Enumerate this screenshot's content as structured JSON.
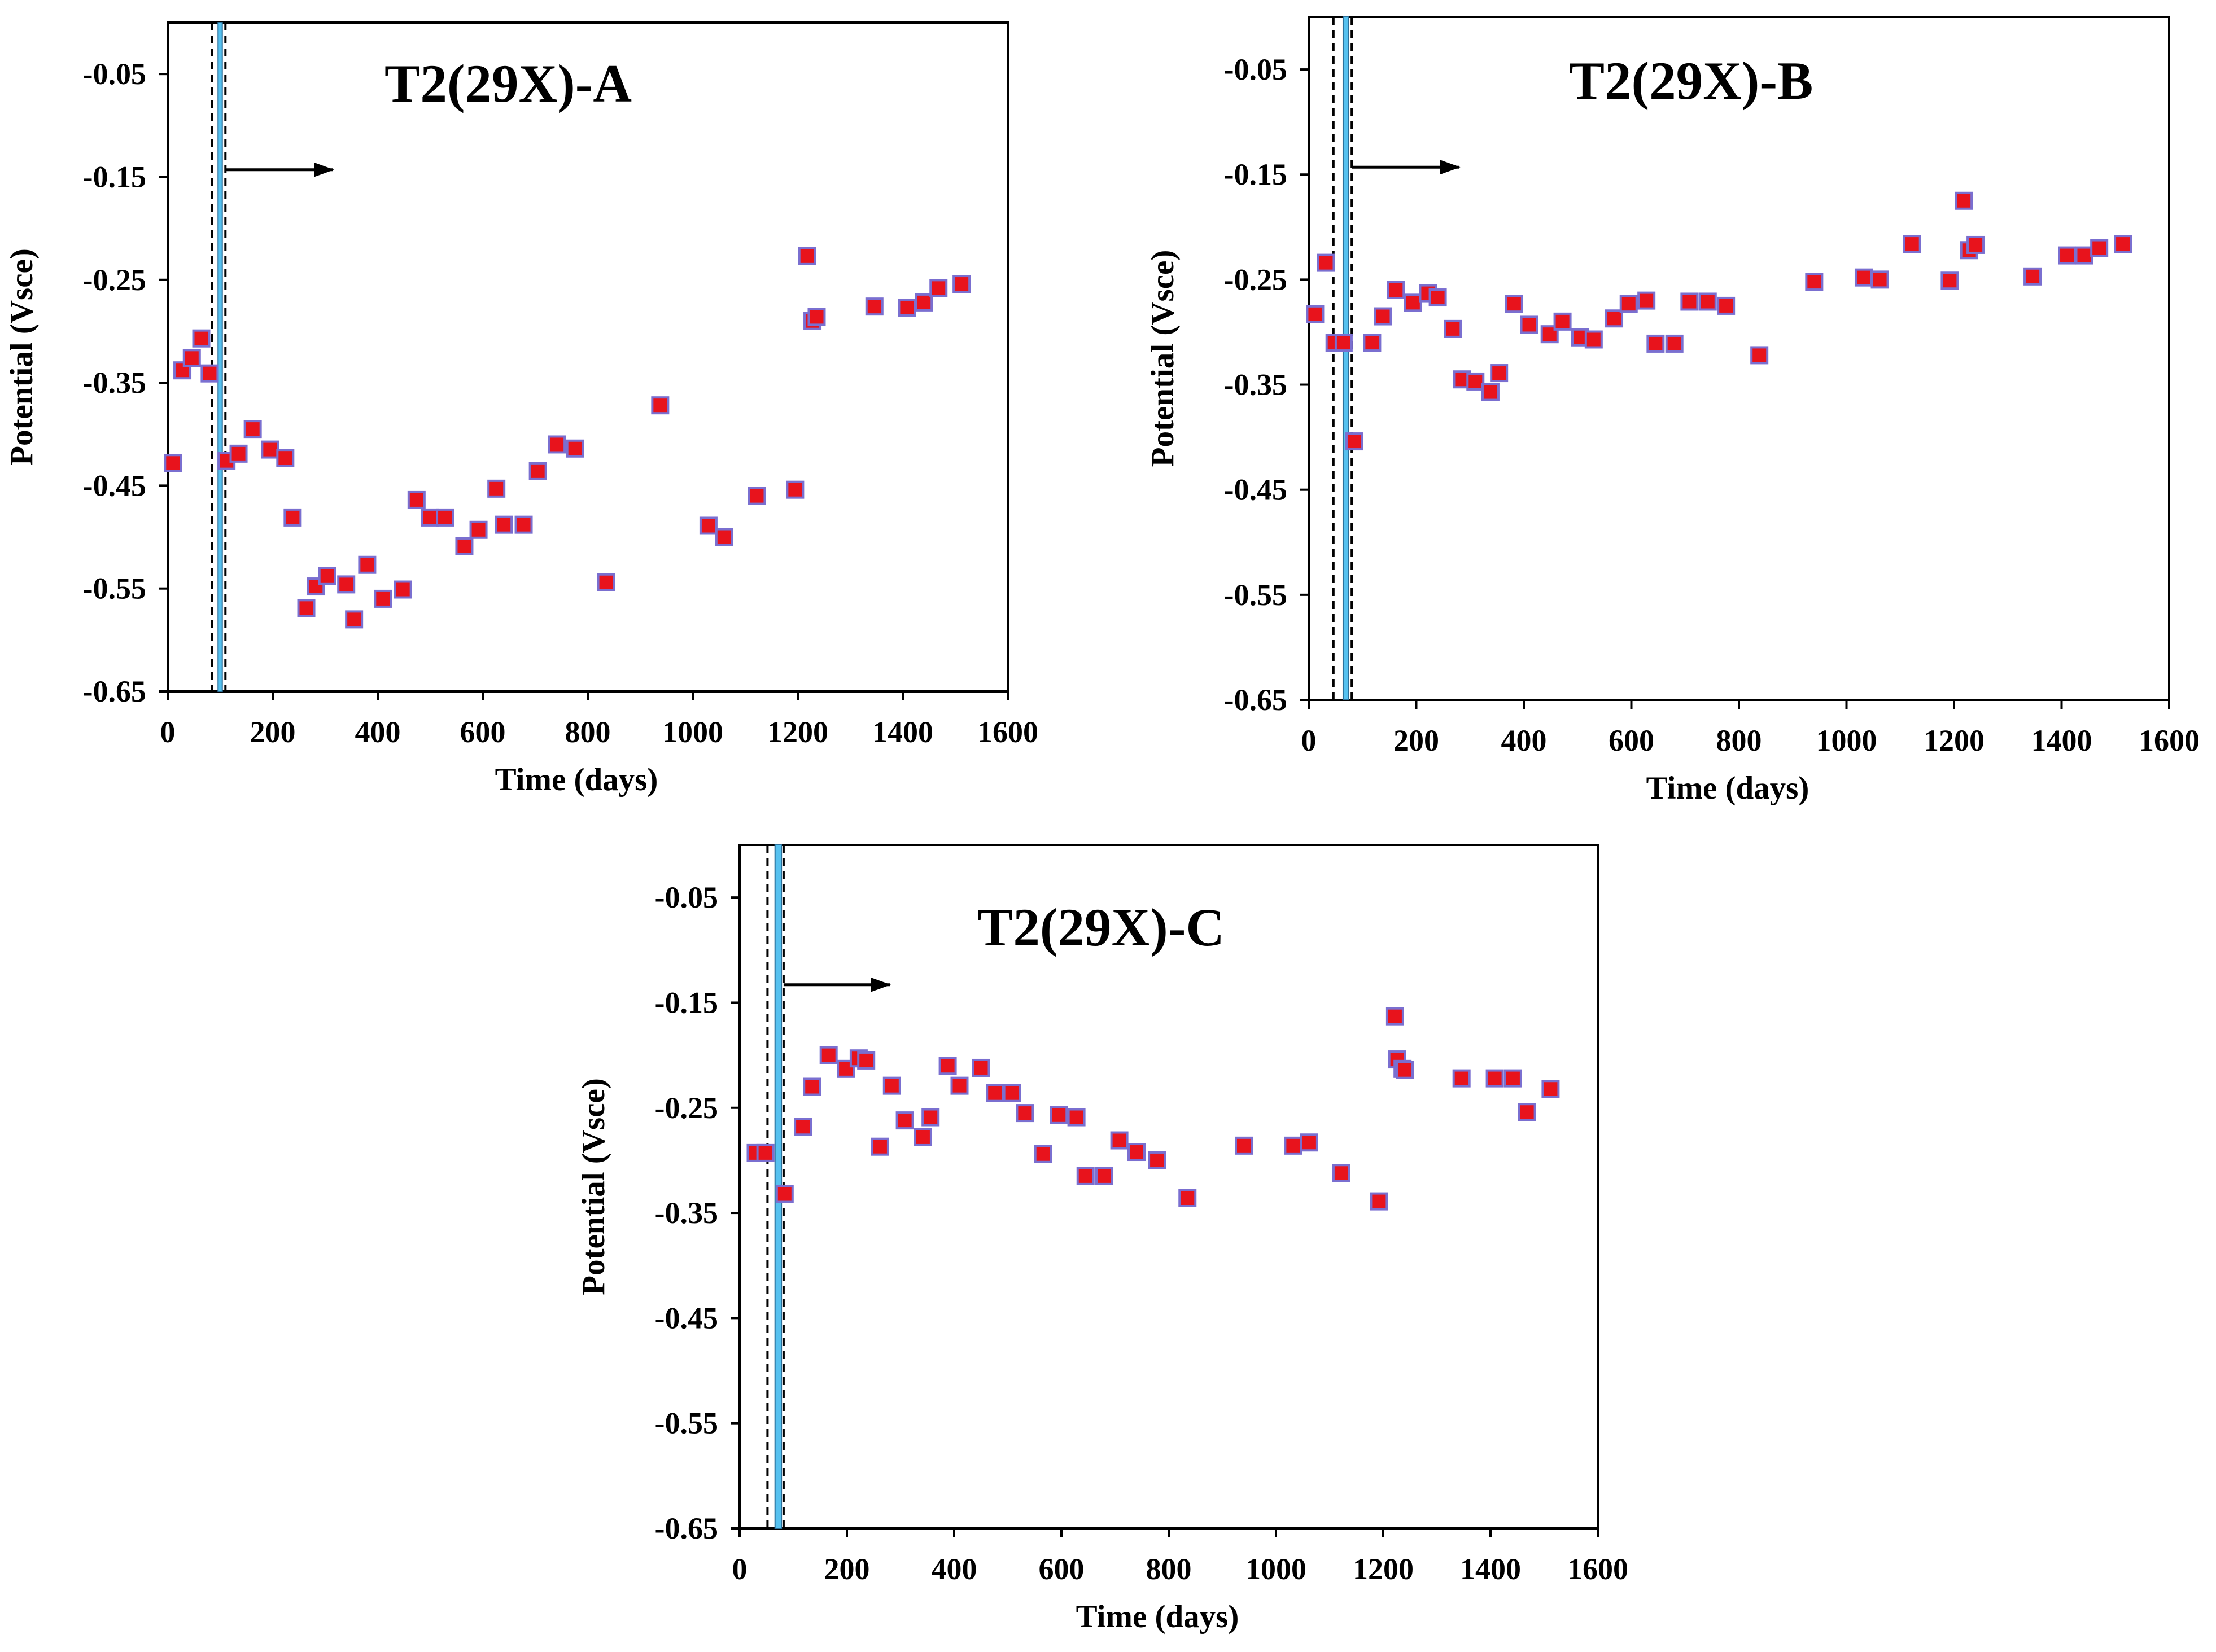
{
  "colors": {
    "marker_fill": "#e8131c",
    "marker_edge": "#7a6fd0",
    "band_fill": "#56c1ef",
    "axis": "#000000"
  },
  "chart_data": [
    {
      "id": "A",
      "type": "scatter",
      "title": "T2(29X)-A",
      "xlabel": "Time (days)",
      "ylabel": "Potential (Vsce)",
      "xlim": [
        0,
        1600
      ],
      "ylim": [
        -0.65,
        0
      ],
      "xticks": [
        0,
        200,
        400,
        600,
        800,
        1000,
        1200,
        1400,
        1600
      ],
      "yticks": [
        -0.05,
        -0.15,
        -0.25,
        -0.35,
        -0.45,
        -0.55,
        -0.65
      ],
      "ytick_labels": [
        "-0.05",
        "-0.15",
        "-0.25",
        "-0.35",
        "-0.45",
        "-0.55",
        "-0.65"
      ],
      "dashed_line_x": [
        84,
        110
      ],
      "band_x": [
        96,
        104
      ],
      "arrow_x": [
        110,
        315
      ],
      "arrow_y": -0.143,
      "points": [
        [
          10,
          -0.428
        ],
        [
          28,
          -0.338
        ],
        [
          46,
          -0.326
        ],
        [
          64,
          -0.307
        ],
        [
          80,
          -0.341
        ],
        [
          112,
          -0.426
        ],
        [
          135,
          -0.419
        ],
        [
          162,
          -0.395
        ],
        [
          195,
          -0.415
        ],
        [
          224,
          -0.423
        ],
        [
          238,
          -0.481
        ],
        [
          264,
          -0.569
        ],
        [
          282,
          -0.548
        ],
        [
          304,
          -0.538
        ],
        [
          340,
          -0.546
        ],
        [
          355,
          -0.58
        ],
        [
          380,
          -0.527
        ],
        [
          410,
          -0.56
        ],
        [
          448,
          -0.551
        ],
        [
          474,
          -0.464
        ],
        [
          500,
          -0.481
        ],
        [
          528,
          -0.481
        ],
        [
          565,
          -0.509
        ],
        [
          592,
          -0.493
        ],
        [
          626,
          -0.453
        ],
        [
          640,
          -0.488
        ],
        [
          678,
          -0.488
        ],
        [
          705,
          -0.436
        ],
        [
          741,
          -0.41
        ],
        [
          776,
          -0.414
        ],
        [
          835,
          -0.544
        ],
        [
          938,
          -0.372
        ],
        [
          1030,
          -0.489
        ],
        [
          1060,
          -0.5
        ],
        [
          1122,
          -0.46
        ],
        [
          1195,
          -0.454
        ],
        [
          1218,
          -0.227
        ],
        [
          1228,
          -0.29
        ],
        [
          1236,
          -0.286
        ],
        [
          1346,
          -0.276
        ],
        [
          1408,
          -0.277
        ],
        [
          1440,
          -0.272
        ],
        [
          1468,
          -0.258
        ],
        [
          1512,
          -0.254
        ]
      ]
    },
    {
      "id": "B",
      "type": "scatter",
      "title": "T2(29X)-B",
      "xlabel": "Time (days)",
      "ylabel": "Potential (Vsce)",
      "xlim": [
        0,
        1600
      ],
      "ylim": [
        -0.65,
        0
      ],
      "xticks": [
        0,
        200,
        400,
        600,
        800,
        1000,
        1200,
        1400,
        1600
      ],
      "yticks": [
        -0.05,
        -0.15,
        -0.25,
        -0.35,
        -0.45,
        -0.55,
        -0.65
      ],
      "ytick_labels": [
        "-0.05",
        "-0.15",
        "-0.25",
        "-0.35",
        "-0.45",
        "-0.55",
        "-0.65"
      ],
      "dashed_line_x": [
        46,
        80
      ],
      "band_x": [
        64,
        74
      ],
      "arrow_x": [
        80,
        280
      ],
      "arrow_y": -0.143,
      "points": [
        [
          12,
          -0.283
        ],
        [
          32,
          -0.234
        ],
        [
          48,
          -0.31
        ],
        [
          65,
          -0.31
        ],
        [
          85,
          -0.404
        ],
        [
          118,
          -0.31
        ],
        [
          138,
          -0.285
        ],
        [
          162,
          -0.26
        ],
        [
          194,
          -0.272
        ],
        [
          222,
          -0.263
        ],
        [
          240,
          -0.267
        ],
        [
          268,
          -0.297
        ],
        [
          285,
          -0.345
        ],
        [
          310,
          -0.347
        ],
        [
          338,
          -0.357
        ],
        [
          354,
          -0.339
        ],
        [
          382,
          -0.273
        ],
        [
          410,
          -0.293
        ],
        [
          448,
          -0.302
        ],
        [
          472,
          -0.29
        ],
        [
          505,
          -0.305
        ],
        [
          530,
          -0.307
        ],
        [
          568,
          -0.287
        ],
        [
          595,
          -0.273
        ],
        [
          628,
          -0.27
        ],
        [
          645,
          -0.311
        ],
        [
          680,
          -0.311
        ],
        [
          708,
          -0.271
        ],
        [
          742,
          -0.271
        ],
        [
          776,
          -0.275
        ],
        [
          838,
          -0.322
        ],
        [
          940,
          -0.252
        ],
        [
          1032,
          -0.248
        ],
        [
          1062,
          -0.25
        ],
        [
          1122,
          -0.216
        ],
        [
          1192,
          -0.251
        ],
        [
          1218,
          -0.175
        ],
        [
          1228,
          -0.222
        ],
        [
          1240,
          -0.217
        ],
        [
          1346,
          -0.247
        ],
        [
          1410,
          -0.227
        ],
        [
          1442,
          -0.227
        ],
        [
          1470,
          -0.22
        ],
        [
          1514,
          -0.216
        ]
      ]
    },
    {
      "id": "C",
      "type": "scatter",
      "title": "T2(29X)-C",
      "xlabel": "Time (days)",
      "ylabel": "Potential (Vsce)",
      "xlim": [
        0,
        1600
      ],
      "ylim": [
        -0.65,
        0
      ],
      "xticks": [
        0,
        200,
        400,
        600,
        800,
        1000,
        1200,
        1400,
        1600
      ],
      "yticks": [
        -0.05,
        -0.15,
        -0.25,
        -0.35,
        -0.45,
        -0.55,
        -0.65
      ],
      "ytick_labels": [
        "-0.05",
        "-0.15",
        "-0.25",
        "-0.35",
        "-0.45",
        "-0.55",
        "-0.65"
      ],
      "dashed_line_x": [
        52,
        82
      ],
      "band_x": [
        66,
        78
      ],
      "arrow_x": [
        82,
        280
      ],
      "arrow_y": -0.133,
      "points": [
        [
          30,
          -0.293
        ],
        [
          48,
          -0.293
        ],
        [
          84,
          -0.332
        ],
        [
          118,
          -0.268
        ],
        [
          135,
          -0.23
        ],
        [
          166,
          -0.2
        ],
        [
          198,
          -0.213
        ],
        [
          222,
          -0.203
        ],
        [
          236,
          -0.205
        ],
        [
          262,
          -0.287
        ],
        [
          284,
          -0.229
        ],
        [
          308,
          -0.262
        ],
        [
          342,
          -0.278
        ],
        [
          356,
          -0.259
        ],
        [
          388,
          -0.21
        ],
        [
          410,
          -0.229
        ],
        [
          450,
          -0.212
        ],
        [
          476,
          -0.236
        ],
        [
          508,
          -0.236
        ],
        [
          532,
          -0.255
        ],
        [
          566,
          -0.294
        ],
        [
          595,
          -0.257
        ],
        [
          628,
          -0.259
        ],
        [
          645,
          -0.315
        ],
        [
          680,
          -0.315
        ],
        [
          708,
          -0.281
        ],
        [
          740,
          -0.292
        ],
        [
          778,
          -0.3
        ],
        [
          835,
          -0.336
        ],
        [
          940,
          -0.286
        ],
        [
          1032,
          -0.286
        ],
        [
          1062,
          -0.283
        ],
        [
          1122,
          -0.312
        ],
        [
          1192,
          -0.339
        ],
        [
          1222,
          -0.163
        ],
        [
          1226,
          -0.204
        ],
        [
          1236,
          -0.213
        ],
        [
          1240,
          -0.214
        ],
        [
          1346,
          -0.222
        ],
        [
          1408,
          -0.222
        ],
        [
          1442,
          -0.222
        ],
        [
          1468,
          -0.254
        ],
        [
          1512,
          -0.232
        ]
      ]
    }
  ]
}
